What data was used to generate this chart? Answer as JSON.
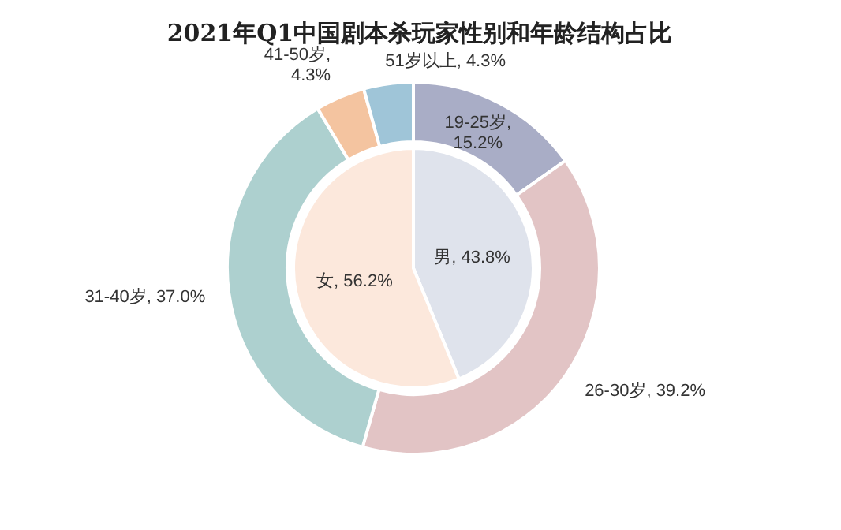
{
  "chart_data": [
    {
      "type": "donut",
      "title": "2021年Q1中国剧本杀玩家性别和年龄结构占比",
      "categories": [
        "19-25岁",
        "26-30岁",
        "31-40岁",
        "41-50岁",
        "51岁以上"
      ],
      "values": [
        15.2,
        39.2,
        37.0,
        4.3,
        4.3
      ],
      "colors": [
        "#a9adc6",
        "#e2c4c5",
        "#add0cf",
        "#f4c4a0",
        "#9fc5d8"
      ],
      "value_labels": [
        ", 15.2%",
        ", 39.2%",
        ", 37.0%",
        ", 4.3%",
        ", 4.3%"
      ]
    },
    {
      "type": "pie",
      "categories": [
        "男",
        "女"
      ],
      "values": [
        43.8,
        56.2
      ],
      "colors": [
        "#dfe3ec",
        "#fce8dc"
      ],
      "value_labels": [
        ", 43.8%",
        ", 56.2%"
      ]
    }
  ]
}
